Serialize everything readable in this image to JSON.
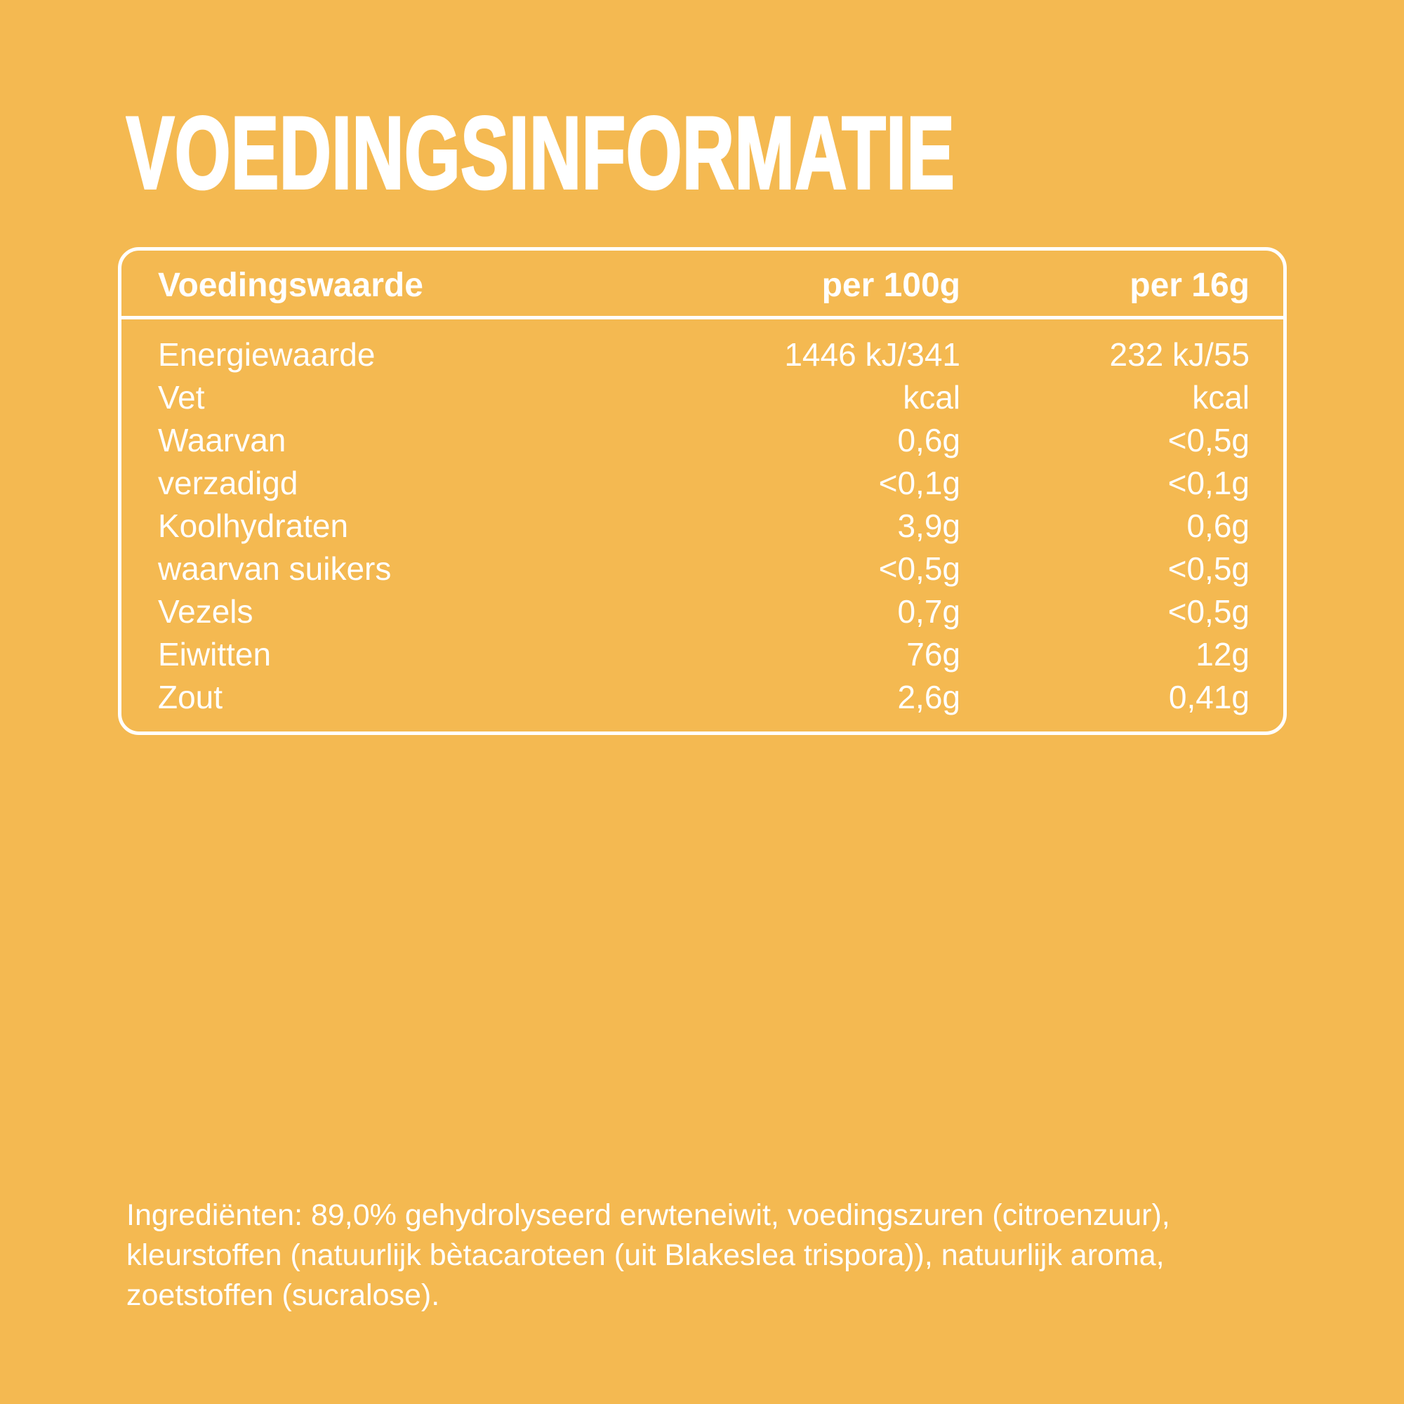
{
  "colors": {
    "background": "#F4B951",
    "text": "#FFFFFF"
  },
  "title": "VOEDINGSINFORMATIE",
  "table": {
    "header": {
      "nutrient": "Voedingswaarde",
      "per_100g": "per 100g",
      "per_16g": "per 16g"
    },
    "rows": [
      {
        "label": "Energiewaarde",
        "per100": "1446 kJ/341",
        "per16": "232 kJ/55"
      },
      {
        "label": "Vet",
        "per100": "kcal",
        "per16": "kcal"
      },
      {
        "label": "Waarvan",
        "per100": "0,6g",
        "per16": "<0,5g"
      },
      {
        "label": "verzadigd",
        "per100": "<0,1g",
        "per16": "<0,1g"
      },
      {
        "label": "Koolhydraten",
        "per100": "3,9g",
        "per16": "0,6g"
      },
      {
        "label": "waarvan suikers",
        "per100": "<0,5g",
        "per16": "<0,5g"
      },
      {
        "label": "Vezels",
        "per100": "0,7g",
        "per16": "<0,5g"
      },
      {
        "label": "Eiwitten",
        "per100": "76g",
        "per16": "12g"
      },
      {
        "label": "Zout",
        "per100": "2,6g",
        "per16": "0,41g"
      }
    ]
  },
  "ingredients": {
    "text": "Ingrediënten: 89,0% gehydrolyseerd erwteneiwit, voedingszuren (citroenzuur), kleurstoffen (natuurlijk bètacaroteen (uit Blakeslea trispora)), natuurlijk aroma, zoetstoffen (sucralose)."
  }
}
